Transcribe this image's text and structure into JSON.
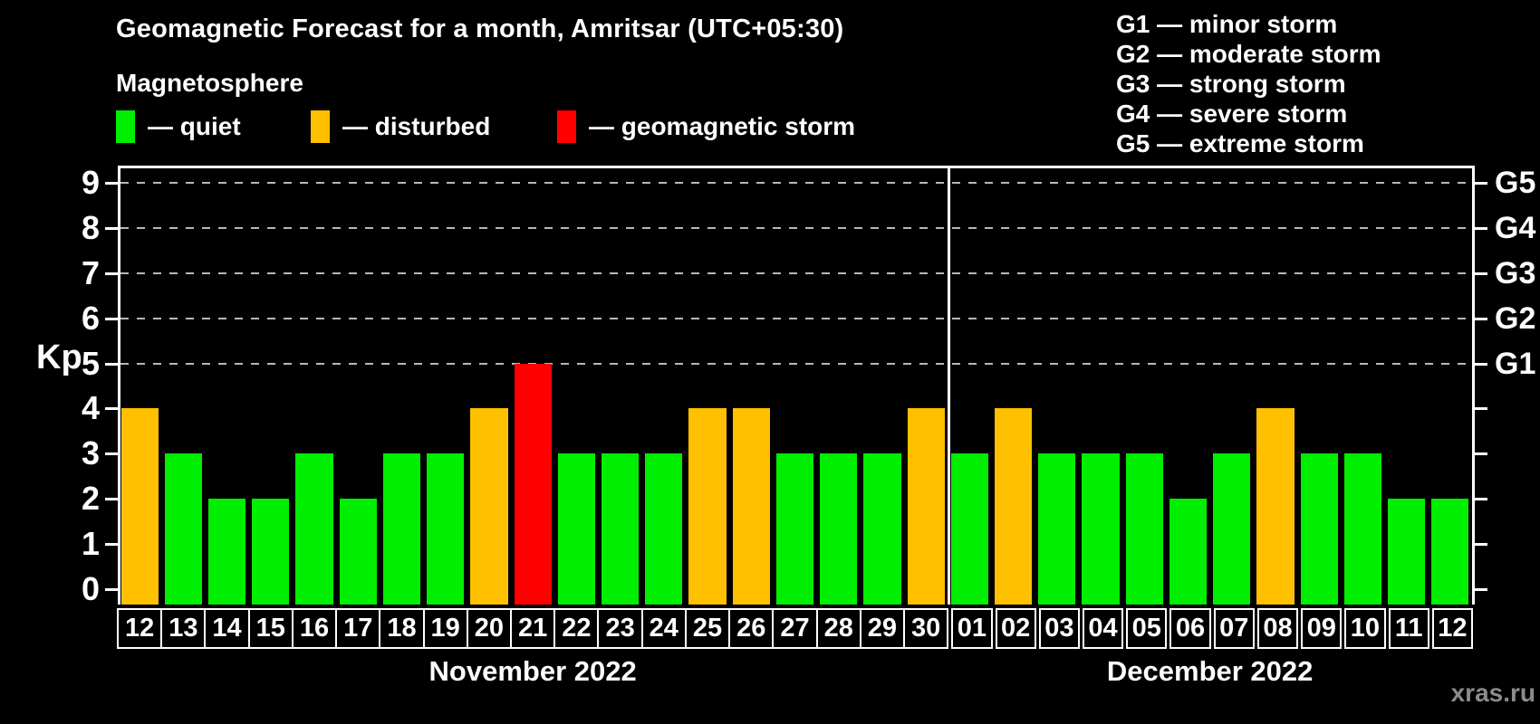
{
  "title": "Geomagnetic Forecast for a month, Amritsar (UTC+05:30)",
  "subtitle": "Magnetosphere",
  "legend": {
    "items": [
      {
        "key": "quiet",
        "label": "— quiet",
        "color": "#00ee00"
      },
      {
        "key": "disturbed",
        "label": "— disturbed",
        "color": "#ffc000"
      },
      {
        "key": "storm",
        "label": "— geomagnetic storm",
        "color": "#ff0000"
      }
    ]
  },
  "storm_scale": [
    "G1 — minor storm",
    "G2 — moderate storm",
    "G3 — strong storm",
    "G4 — severe storm",
    "G5 — extreme storm"
  ],
  "watermark": "xras.ru",
  "chart_data": {
    "type": "bar",
    "ylabel": "Kp",
    "ylim": [
      0,
      9
    ],
    "yticks": [
      0,
      1,
      2,
      3,
      4,
      5,
      6,
      7,
      8,
      9
    ],
    "gridline_kp": [
      5,
      6,
      7,
      8,
      9
    ],
    "right_axis": [
      {
        "kp": 5,
        "label": "G1"
      },
      {
        "kp": 6,
        "label": "G2"
      },
      {
        "kp": 7,
        "label": "G3"
      },
      {
        "kp": 8,
        "label": "G4"
      },
      {
        "kp": 9,
        "label": "G5"
      }
    ],
    "months": [
      {
        "label": "November 2022",
        "days": [
          {
            "day": "12",
            "kp": 4,
            "status": "disturbed"
          },
          {
            "day": "13",
            "kp": 3,
            "status": "quiet"
          },
          {
            "day": "14",
            "kp": 2,
            "status": "quiet"
          },
          {
            "day": "15",
            "kp": 2,
            "status": "quiet"
          },
          {
            "day": "16",
            "kp": 3,
            "status": "quiet"
          },
          {
            "day": "17",
            "kp": 2,
            "status": "quiet"
          },
          {
            "day": "18",
            "kp": 3,
            "status": "quiet"
          },
          {
            "day": "19",
            "kp": 3,
            "status": "quiet"
          },
          {
            "day": "20",
            "kp": 4,
            "status": "disturbed"
          },
          {
            "day": "21",
            "kp": 5,
            "status": "storm"
          },
          {
            "day": "22",
            "kp": 3,
            "status": "quiet"
          },
          {
            "day": "23",
            "kp": 3,
            "status": "quiet"
          },
          {
            "day": "24",
            "kp": 3,
            "status": "quiet"
          },
          {
            "day": "25",
            "kp": 4,
            "status": "disturbed"
          },
          {
            "day": "26",
            "kp": 4,
            "status": "disturbed"
          },
          {
            "day": "27",
            "kp": 3,
            "status": "quiet"
          },
          {
            "day": "28",
            "kp": 3,
            "status": "quiet"
          },
          {
            "day": "29",
            "kp": 3,
            "status": "quiet"
          },
          {
            "day": "30",
            "kp": 4,
            "status": "disturbed"
          }
        ]
      },
      {
        "label": "December 2022",
        "days": [
          {
            "day": "01",
            "kp": 3,
            "status": "quiet"
          },
          {
            "day": "02",
            "kp": 4,
            "status": "disturbed"
          },
          {
            "day": "03",
            "kp": 3,
            "status": "quiet"
          },
          {
            "day": "04",
            "kp": 3,
            "status": "quiet"
          },
          {
            "day": "05",
            "kp": 3,
            "status": "quiet"
          },
          {
            "day": "06",
            "kp": 2,
            "status": "quiet"
          },
          {
            "day": "07",
            "kp": 3,
            "status": "quiet"
          },
          {
            "day": "08",
            "kp": 4,
            "status": "disturbed"
          },
          {
            "day": "09",
            "kp": 3,
            "status": "quiet"
          },
          {
            "day": "10",
            "kp": 3,
            "status": "quiet"
          },
          {
            "day": "11",
            "kp": 2,
            "status": "quiet"
          },
          {
            "day": "12",
            "kp": 2,
            "status": "quiet"
          }
        ]
      }
    ]
  }
}
